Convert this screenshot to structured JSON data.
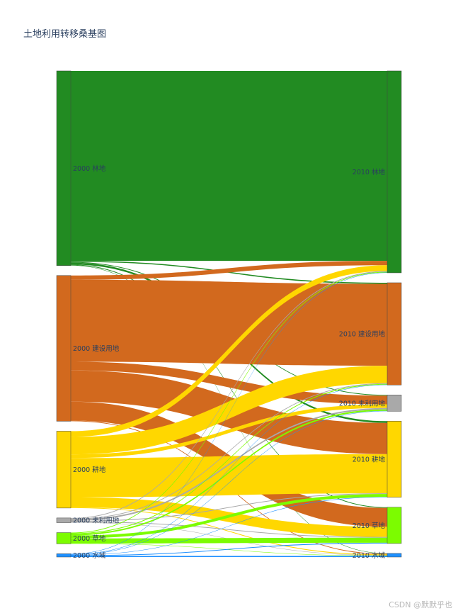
{
  "chart_data": {
    "type": "sankey",
    "title": "土地利用转移桑基图",
    "nodes_left": [
      {
        "id": "L_forest",
        "label": "2000 林地",
        "color": "#228B22"
      },
      {
        "id": "L_built",
        "label": "2000 建设用地",
        "color": "#D2691E"
      },
      {
        "id": "L_crop",
        "label": "2000 耕地",
        "color": "#FFD700"
      },
      {
        "id": "L_unused",
        "label": "2000 未利用地",
        "color": "#A9A9A9"
      },
      {
        "id": "L_grass",
        "label": "2000 草地",
        "color": "#7CFC00"
      },
      {
        "id": "L_water",
        "label": "2000 水域",
        "color": "#1E90FF"
      }
    ],
    "nodes_right": [
      {
        "id": "R_forest",
        "label": "2010 林地",
        "color": "#228B22"
      },
      {
        "id": "R_built",
        "label": "2010 建设用地",
        "color": "#D2691E"
      },
      {
        "id": "R_unused",
        "label": "2010 未利用地",
        "color": "#A9A9A9"
      },
      {
        "id": "R_crop",
        "label": "2010 耕地",
        "color": "#FFD700"
      },
      {
        "id": "R_grass",
        "label": "2010 草地",
        "color": "#7CFC00"
      },
      {
        "id": "R_water",
        "label": "2010 水域",
        "color": "#1E90FF"
      }
    ],
    "links": [
      {
        "source": "L_forest",
        "target": "R_forest",
        "value": 262
      },
      {
        "source": "L_forest",
        "target": "R_built",
        "value": 1.5
      },
      {
        "source": "L_forest",
        "target": "R_unused",
        "value": 1
      },
      {
        "source": "L_forest",
        "target": "R_crop",
        "value": 2.5
      },
      {
        "source": "L_forest",
        "target": "R_grass",
        "value": 1
      },
      {
        "source": "L_forest",
        "target": "R_water",
        "value": 0.5
      },
      {
        "source": "L_built",
        "target": "R_forest",
        "value": 6
      },
      {
        "source": "L_built",
        "target": "R_built",
        "value": 113
      },
      {
        "source": "L_built",
        "target": "R_unused",
        "value": 12
      },
      {
        "source": "L_built",
        "target": "R_crop",
        "value": 43
      },
      {
        "source": "L_built",
        "target": "R_grass",
        "value": 26
      },
      {
        "source": "L_built",
        "target": "R_water",
        "value": 1
      },
      {
        "source": "L_crop",
        "target": "R_forest",
        "value": 8
      },
      {
        "source": "L_crop",
        "target": "R_built",
        "value": 24
      },
      {
        "source": "L_crop",
        "target": "R_unused",
        "value": 5
      },
      {
        "source": "L_crop",
        "target": "R_crop",
        "value": 54
      },
      {
        "source": "L_crop",
        "target": "R_grass",
        "value": 14
      },
      {
        "source": "L_crop",
        "target": "R_water",
        "value": 1
      },
      {
        "source": "L_unused",
        "target": "R_forest",
        "value": 1
      },
      {
        "source": "L_unused",
        "target": "R_built",
        "value": 1
      },
      {
        "source": "L_unused",
        "target": "R_unused",
        "value": 2
      },
      {
        "source": "L_unused",
        "target": "R_crop",
        "value": 1
      },
      {
        "source": "L_unused",
        "target": "R_grass",
        "value": 1
      },
      {
        "source": "L_unused",
        "target": "R_water",
        "value": 0.5
      },
      {
        "source": "L_grass",
        "target": "R_forest",
        "value": 1
      },
      {
        "source": "L_grass",
        "target": "R_built",
        "value": 1
      },
      {
        "source": "L_grass",
        "target": "R_unused",
        "value": 2
      },
      {
        "source": "L_grass",
        "target": "R_crop",
        "value": 4
      },
      {
        "source": "L_grass",
        "target": "R_grass",
        "value": 7
      },
      {
        "source": "L_grass",
        "target": "R_water",
        "value": 0.5
      },
      {
        "source": "L_water",
        "target": "R_forest",
        "value": 0.5
      },
      {
        "source": "L_water",
        "target": "R_built",
        "value": 0.5
      },
      {
        "source": "L_water",
        "target": "R_unused",
        "value": 0.5
      },
      {
        "source": "L_water",
        "target": "R_crop",
        "value": 0.5
      },
      {
        "source": "L_water",
        "target": "R_grass",
        "value": 1
      },
      {
        "source": "L_water",
        "target": "R_water",
        "value": 1.5
      }
    ]
  },
  "watermark": "CSDN @默默乎也"
}
